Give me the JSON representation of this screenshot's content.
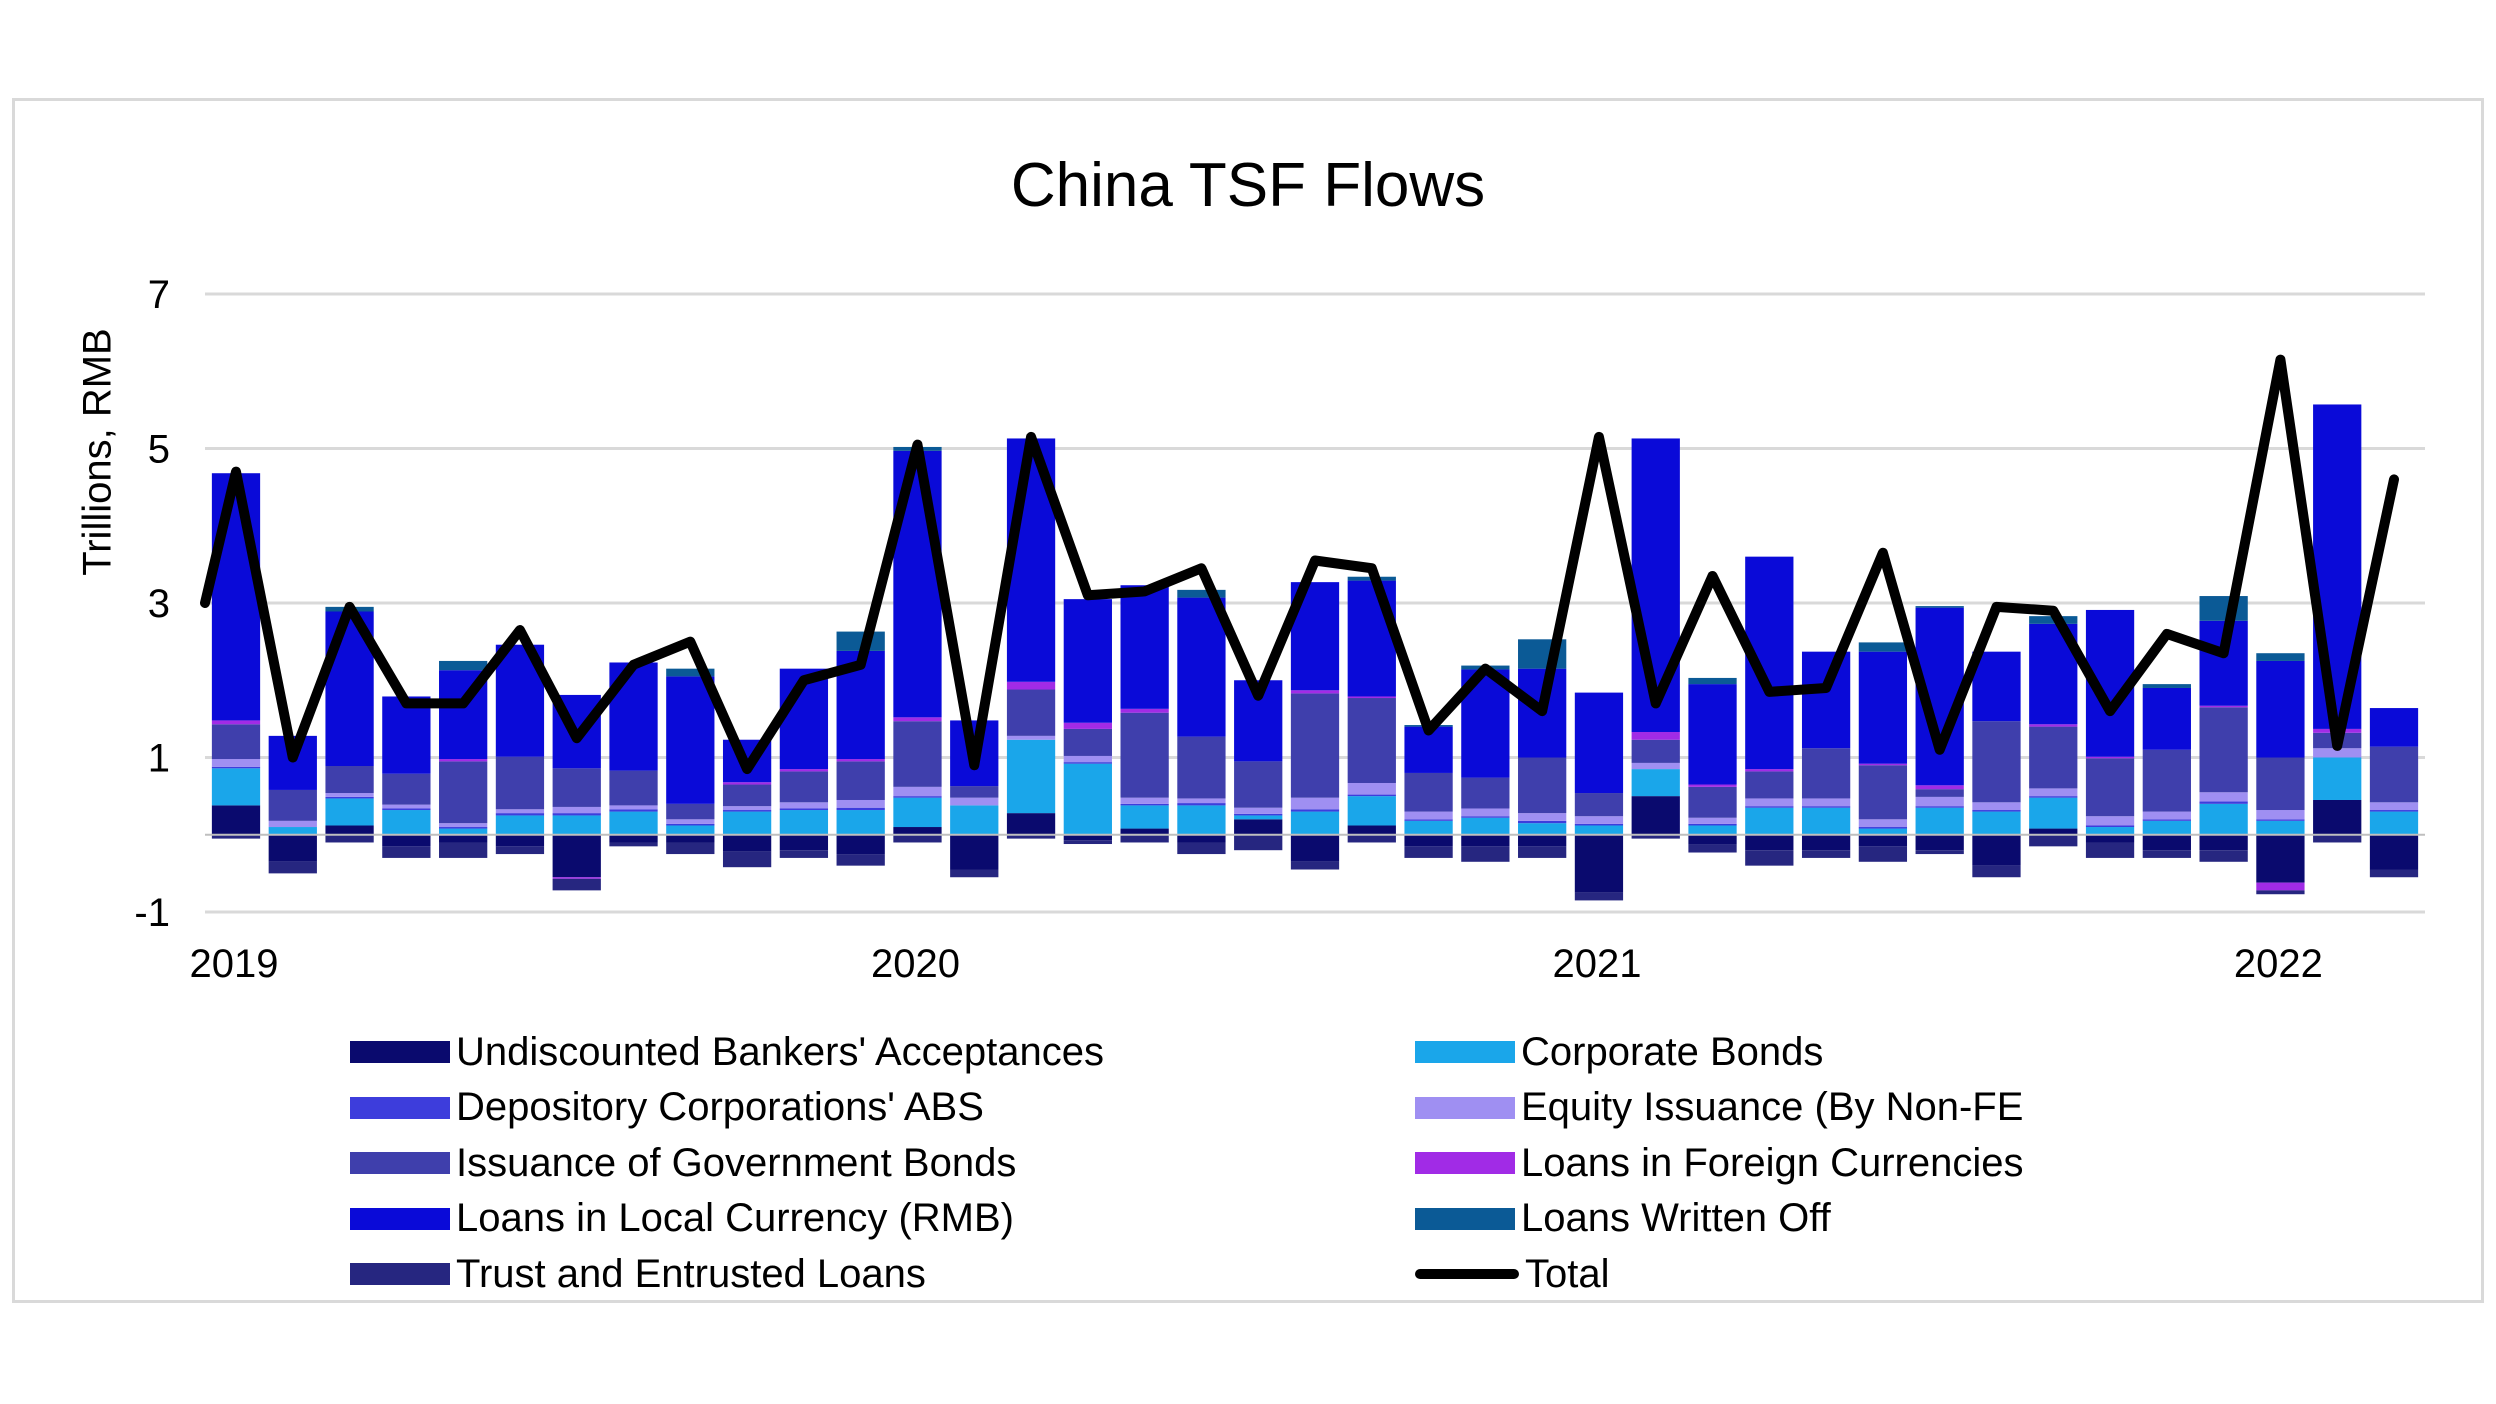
{
  "chart_data": {
    "type": "bar",
    "stacked": true,
    "title": "China TSF Flows",
    "xlabel": "",
    "ylabel": "Trillions,  RMB",
    "ylim": [
      -1,
      7
    ],
    "yticks": [
      -1,
      1,
      3,
      5,
      7
    ],
    "grid": true,
    "legend_position": "bottom",
    "x_tick_labels": [
      "2019",
      "2020",
      "2021",
      "2022"
    ],
    "x_tick_months": [
      0,
      12,
      24,
      36
    ],
    "months": [
      "2019-01",
      "2019-02",
      "2019-03",
      "2019-04",
      "2019-05",
      "2019-06",
      "2019-07",
      "2019-08",
      "2019-09",
      "2019-10",
      "2019-11",
      "2019-12",
      "2020-01",
      "2020-02",
      "2020-03",
      "2020-04",
      "2020-05",
      "2020-06",
      "2020-07",
      "2020-08",
      "2020-09",
      "2020-10",
      "2020-11",
      "2020-12",
      "2021-01",
      "2021-02",
      "2021-03",
      "2021-04",
      "2021-05",
      "2021-06",
      "2021-07",
      "2021-08",
      "2021-09",
      "2021-10",
      "2021-11",
      "2021-12",
      "2022-01",
      "2022-02",
      "2022-03"
    ],
    "series": [
      {
        "name": "Undiscounted Bankers' Acceptances",
        "color": "#0a0a6e",
        "values": [
          0.38,
          -0.35,
          0.12,
          -0.15,
          -0.1,
          -0.15,
          -0.55,
          -0.1,
          -0.1,
          -0.22,
          -0.2,
          -0.25,
          0.1,
          -0.45,
          0.28,
          -0.07,
          0.08,
          -0.1,
          0.2,
          -0.35,
          0.12,
          -0.15,
          -0.15,
          -0.15,
          -0.75,
          0.5,
          -0.13,
          -0.2,
          -0.2,
          -0.15,
          -0.2,
          -0.4,
          0.08,
          -0.1,
          -0.2,
          -0.2,
          -0.62,
          0.45,
          -0.45
        ]
      },
      {
        "name": "Corporate Bonds",
        "color": "#1aa6ea",
        "values": [
          0.48,
          0.1,
          0.35,
          0.32,
          0.08,
          0.25,
          0.25,
          0.3,
          0.12,
          0.3,
          0.32,
          0.32,
          0.38,
          0.38,
          0.95,
          0.92,
          0.3,
          0.38,
          0.05,
          0.3,
          0.38,
          0.18,
          0.22,
          0.15,
          0.12,
          0.35,
          0.12,
          0.35,
          0.35,
          0.08,
          0.35,
          0.3,
          0.4,
          0.1,
          0.18,
          0.4,
          0.18,
          0.55,
          0.3
        ]
      },
      {
        "name": "Depository Corporations' ABS",
        "color": "#3d3ddc",
        "values": [
          0.02,
          0.0,
          0.02,
          0.02,
          0.02,
          0.03,
          0.03,
          0.03,
          0.02,
          0.02,
          0.02,
          0.03,
          0.02,
          0.0,
          0.0,
          0.02,
          0.02,
          0.03,
          0.02,
          0.03,
          0.02,
          0.02,
          0.02,
          0.03,
          0.02,
          0.0,
          0.02,
          0.02,
          0.02,
          0.02,
          0.02,
          0.02,
          0.02,
          0.02,
          0.02,
          0.03,
          0.02,
          0.0,
          0.02
        ]
      },
      {
        "name": "Equity Issuance (By Non-FE",
        "color": "#9f8ff2",
        "values": [
          0.1,
          0.08,
          0.05,
          0.05,
          0.05,
          0.05,
          0.08,
          0.05,
          0.06,
          0.05,
          0.08,
          0.1,
          0.12,
          0.1,
          0.05,
          0.08,
          0.08,
          0.06,
          0.08,
          0.15,
          0.15,
          0.1,
          0.1,
          0.1,
          0.1,
          0.08,
          0.08,
          0.1,
          0.1,
          0.1,
          0.12,
          0.1,
          0.1,
          0.12,
          0.1,
          0.12,
          0.12,
          0.12,
          0.1
        ]
      },
      {
        "name": "Issuance of Government Bonds",
        "color": "#3f3fac",
        "values": [
          0.45,
          0.4,
          0.35,
          0.4,
          0.8,
          0.68,
          0.5,
          0.45,
          0.2,
          0.28,
          0.4,
          0.5,
          0.85,
          0.15,
          0.6,
          0.35,
          1.1,
          0.8,
          0.6,
          1.35,
          1.1,
          0.5,
          0.4,
          0.72,
          0.3,
          0.3,
          0.4,
          0.35,
          0.65,
          0.7,
          0.1,
          1.05,
          0.8,
          0.75,
          0.8,
          1.1,
          0.68,
          0.2,
          0.72
        ]
      },
      {
        "name": "Loans in Foreign Currencies",
        "color": "#a12be6",
        "values": [
          0.05,
          0.0,
          0.0,
          0.0,
          0.03,
          0.0,
          -0.02,
          0.0,
          0.0,
          0.03,
          0.03,
          0.03,
          0.05,
          0.0,
          0.1,
          0.08,
          0.05,
          0.0,
          0.0,
          0.04,
          0.02,
          0.0,
          0.0,
          0.0,
          0.0,
          0.1,
          0.03,
          0.03,
          0.0,
          0.02,
          0.05,
          0.0,
          0.03,
          0.02,
          0.0,
          0.02,
          -0.1,
          0.05,
          0.0
        ]
      },
      {
        "name": "Loans in Local Currency (RMB)",
        "color": "#0a0ad8",
        "values": [
          3.2,
          0.7,
          2.0,
          1.0,
          1.15,
          1.45,
          0.95,
          1.4,
          1.65,
          0.55,
          1.3,
          1.4,
          3.45,
          0.85,
          3.15,
          1.6,
          1.6,
          1.8,
          1.05,
          1.4,
          1.5,
          0.6,
          1.4,
          1.15,
          1.3,
          3.8,
          1.3,
          2.75,
          1.25,
          1.45,
          2.3,
          0.9,
          1.3,
          1.9,
          0.8,
          1.1,
          1.25,
          4.2,
          0.5
        ]
      },
      {
        "name": "Loans Written Off",
        "color": "#0b5a96",
        "values": [
          0.0,
          0.0,
          0.06,
          0.0,
          0.12,
          0.0,
          0.0,
          0.0,
          0.1,
          0.0,
          0.0,
          0.25,
          0.05,
          0.0,
          0.0,
          0.0,
          0.0,
          0.1,
          0.0,
          0.0,
          0.05,
          0.02,
          0.05,
          0.38,
          0.0,
          0.0,
          0.08,
          0.0,
          0.0,
          0.12,
          0.02,
          0.0,
          0.1,
          0.0,
          0.05,
          0.32,
          0.1,
          0.0,
          0.0
        ]
      },
      {
        "name": "Trust and Entrusted Loans",
        "color": "#262680",
        "values": [
          -0.05,
          -0.15,
          -0.1,
          -0.15,
          -0.2,
          -0.1,
          -0.15,
          -0.05,
          -0.15,
          -0.2,
          -0.1,
          -0.15,
          -0.1,
          -0.1,
          -0.05,
          -0.05,
          -0.1,
          -0.15,
          -0.2,
          -0.1,
          -0.1,
          -0.15,
          -0.2,
          -0.15,
          -0.1,
          -0.05,
          -0.1,
          -0.2,
          -0.1,
          -0.2,
          -0.05,
          -0.15,
          -0.15,
          -0.2,
          -0.1,
          -0.15,
          -0.05,
          -0.1,
          -0.1
        ]
      },
      {
        "name": "Total",
        "type": "line",
        "color": "#000000",
        "values": [
          4.7,
          1.0,
          2.95,
          1.7,
          1.7,
          2.65,
          1.25,
          2.2,
          2.5,
          0.85,
          2.0,
          2.2,
          5.05,
          0.9,
          5.15,
          3.1,
          3.15,
          3.45,
          1.8,
          3.55,
          3.45,
          1.35,
          2.15,
          1.6,
          5.15,
          1.7,
          3.35,
          1.85,
          1.9,
          3.65,
          1.1,
          2.95,
          2.9,
          1.6,
          2.6,
          2.35,
          6.15,
          1.15,
          4.6
        ]
      }
    ],
    "total_left_start": 3.0
  },
  "legend": {
    "items": [
      {
        "label": "Undiscounted Bankers' Acceptances",
        "color": "#0a0a6e"
      },
      {
        "label": "Corporate Bonds",
        "color": "#1aa6ea"
      },
      {
        "label": "Depository Corporations' ABS",
        "color": "#3d3ddc"
      },
      {
        "label": "Equity Issuance (By Non-FE",
        "color": "#9f8ff2"
      },
      {
        "label": "Issuance of Government Bonds",
        "color": "#3f3fac"
      },
      {
        "label": "Loans in Foreign Currencies",
        "color": "#a12be6"
      },
      {
        "label": "Loans in Local Currency (RMB)",
        "color": "#0a0ad8"
      },
      {
        "label": "Loans Written Off",
        "color": "#0b5a96"
      },
      {
        "label": "Trust and Entrusted Loans",
        "color": "#262680"
      },
      {
        "label": "Total",
        "color": "#000000",
        "line": true
      }
    ]
  }
}
